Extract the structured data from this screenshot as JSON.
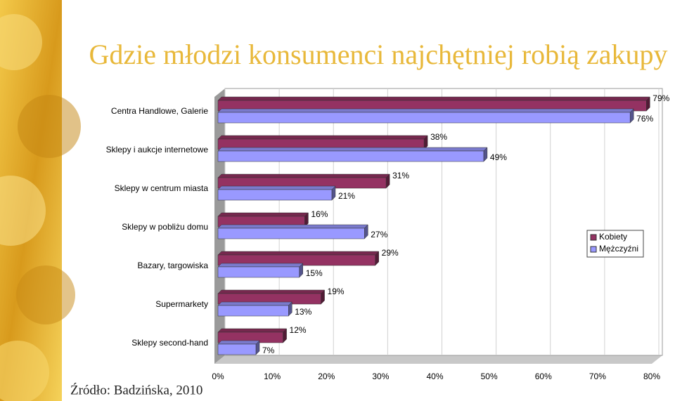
{
  "title": "Gdzie młodzi konsumenci najchętniej robią zakupy",
  "source": "Źródło: Badzińska, 2010",
  "chart_data": {
    "type": "bar",
    "orientation": "horizontal",
    "categories": [
      "Centra Handlowe, Galerie",
      "Sklepy i aukcje internetowe",
      "Sklepy w centrum miasta",
      "Sklepy w pobliżu domu",
      "Bazary, targowiska",
      "Supermarkety",
      "Sklepy second-hand"
    ],
    "series": [
      {
        "name": "Kobiety",
        "color": "#943262",
        "values": [
          79,
          38,
          31,
          16,
          29,
          19,
          12
        ],
        "value_labels": [
          "79%",
          "38%",
          "31%",
          "16%",
          "29%",
          "19%",
          "12%"
        ]
      },
      {
        "name": "Mężczyźni",
        "color": "#9999ff",
        "values": [
          76,
          49,
          21,
          27,
          15,
          13,
          7
        ],
        "value_labels": [
          "76%",
          "49%",
          "21%",
          "27%",
          "15%",
          "13%",
          "7%"
        ]
      }
    ],
    "xlim": [
      0,
      80
    ],
    "xticks": [
      {
        "value": 0,
        "label": "0%"
      },
      {
        "value": 10,
        "label": "10%"
      },
      {
        "value": 20,
        "label": "20%"
      },
      {
        "value": 30,
        "label": "30%"
      },
      {
        "value": 40,
        "label": "40%"
      },
      {
        "value": 50,
        "label": "50%"
      },
      {
        "value": 60,
        "label": "60%"
      },
      {
        "value": 70,
        "label": "70%"
      },
      {
        "value": 80,
        "label": "80%"
      }
    ],
    "grid": true,
    "legend": "right"
  }
}
